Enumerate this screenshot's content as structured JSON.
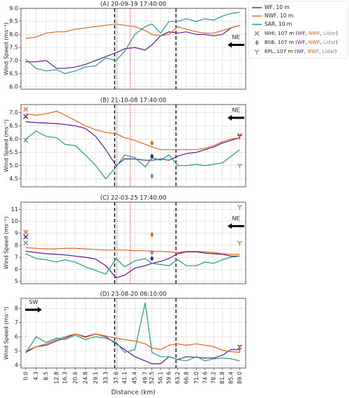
{
  "chart_data": [
    {
      "type": "line",
      "title": "(A) 20-09-19 17:40:00",
      "ylabel": "Wind Speed (ms⁻¹)",
      "grid": true,
      "x": [
        0.0,
        4.3,
        8.5,
        12.8,
        16.3,
        20.6,
        24.8,
        29.1,
        33.3,
        37.6,
        41.1,
        45.4,
        49.7,
        52.5,
        56.1,
        59.6,
        63.2,
        66.8,
        71.0,
        74.6,
        78.2,
        81.8,
        85.4,
        89.0
      ],
      "xlim": [
        -2,
        91.5
      ],
      "xticks": [
        0,
        4.3,
        8.5,
        12.8,
        16.3,
        20.6,
        24.8,
        29.1,
        33.3,
        37.6,
        41.1,
        45.4,
        49.7,
        52.5,
        56.1,
        59.6,
        63.2,
        66.8,
        71,
        74.6,
        78.2,
        81.8,
        85.4,
        89
      ],
      "ylim": [
        5.9,
        9.0
      ],
      "yticks": [
        {
          "value": 6,
          "label": "6.0"
        },
        6.5,
        {
          "value": 7,
          "label": "7.0"
        },
        7.5,
        {
          "value": 8,
          "label": "8.0"
        },
        8.5,
        {
          "value": 9,
          "label": "9.0"
        }
      ],
      "series": [
        {
          "name": "WF, 10 m",
          "color": "#5b1a8c",
          "values": [
            6.95,
            6.95,
            7.0,
            6.7,
            6.7,
            6.75,
            6.85,
            7.0,
            7.15,
            7.3,
            7.45,
            7.5,
            7.4,
            7.6,
            7.95,
            8.1,
            8.05,
            8.1,
            8.0,
            8.0,
            7.95,
            8.0,
            8.25,
            8.35
          ]
        },
        {
          "name": "NWF, 10 m",
          "color": "#e0661a",
          "values": [
            7.85,
            7.9,
            8.05,
            8.1,
            8.1,
            8.2,
            8.25,
            8.3,
            8.35,
            8.4,
            8.35,
            8.3,
            8.15,
            8.0,
            7.95,
            8.0,
            8.3,
            8.2,
            8.1,
            8.05,
            8.05,
            8.15,
            8.25,
            8.35
          ]
        },
        {
          "name": "SAR, 10 m",
          "color": "#1f9e78",
          "values": [
            7.05,
            6.7,
            6.6,
            6.65,
            6.5,
            6.6,
            6.75,
            6.8,
            7.1,
            7.0,
            7.35,
            8.0,
            8.3,
            8.4,
            8.05,
            8.5,
            8.5,
            8.6,
            8.5,
            8.6,
            8.55,
            8.7,
            8.8,
            8.85
          ]
        }
      ],
      "vlines": [
        {
          "x": 37.0,
          "style": "dashed",
          "color": "#000000"
        },
        {
          "x": 38.0,
          "style": "dotted",
          "color": "#e00000"
        },
        {
          "x": 43.5,
          "style": "dotted",
          "color": "#e00000"
        },
        {
          "x": 62.5,
          "style": "dashed",
          "color": "#000000"
        }
      ],
      "points": [],
      "wind": {
        "label": "NE",
        "direction": "left",
        "y": 7.6
      }
    },
    {
      "type": "line",
      "title": "(B) 21-10-08 17:40:00",
      "ylabel": "Wind Speed (ms⁻¹)",
      "grid": true,
      "x": [
        0.0,
        4.3,
        8.5,
        12.8,
        16.3,
        20.6,
        24.8,
        29.1,
        33.3,
        37.6,
        41.1,
        45.4,
        49.7,
        52.5,
        56.1,
        59.6,
        63.2,
        66.8,
        71.0,
        74.6,
        78.2,
        81.8,
        85.4,
        89.0
      ],
      "xlim": [
        -2,
        91.5
      ],
      "xticks": [
        0,
        4.3,
        8.5,
        12.8,
        16.3,
        20.6,
        24.8,
        29.1,
        33.3,
        37.6,
        41.1,
        45.4,
        49.7,
        52.5,
        56.1,
        59.6,
        63.2,
        66.8,
        71,
        74.6,
        78.2,
        81.8,
        85.4,
        89
      ],
      "ylim": [
        4.2,
        7.3
      ],
      "yticks": [
        4.5,
        {
          "value": 5,
          "label": "5.0"
        },
        5.5,
        {
          "value": 6,
          "label": "6.0"
        },
        6.5,
        {
          "value": 7,
          "label": "7.0"
        }
      ],
      "series": [
        {
          "name": "WF, 10 m",
          "color": "#5b1a8c",
          "values": [
            6.65,
            6.62,
            6.6,
            6.58,
            6.55,
            6.5,
            6.4,
            6.1,
            5.6,
            5.0,
            5.25,
            5.25,
            5.2,
            5.2,
            5.25,
            5.2,
            5.35,
            5.45,
            5.5,
            5.6,
            5.7,
            5.85,
            5.95,
            6.05
          ]
        },
        {
          "name": "NWF, 10 m",
          "color": "#e0661a",
          "values": [
            6.95,
            6.9,
            6.95,
            7.05,
            6.9,
            6.7,
            6.5,
            6.35,
            6.25,
            6.2,
            6.05,
            5.95,
            5.8,
            5.7,
            5.6,
            5.6,
            5.6,
            5.6,
            5.6,
            5.65,
            5.75,
            5.9,
            6.0,
            6.05
          ]
        },
        {
          "name": "SAR, 10 m",
          "color": "#1f9e78",
          "values": [
            6.0,
            6.3,
            6.1,
            6.05,
            5.8,
            5.75,
            5.4,
            5.0,
            4.5,
            4.95,
            5.4,
            5.3,
            4.95,
            5.3,
            5.2,
            5.4,
            5.0,
            5.0,
            5.05,
            5.0,
            5.05,
            5.1,
            5.35,
            5.6
          ]
        }
      ],
      "vlines": [
        {
          "x": 37.0,
          "style": "dashed",
          "color": "#000000"
        },
        {
          "x": 38.0,
          "style": "dotted",
          "color": "#e00000"
        },
        {
          "x": 43.5,
          "style": "dotted",
          "color": "#e00000"
        },
        {
          "x": 62.5,
          "style": "dashed",
          "color": "#000000"
        }
      ],
      "points": [
        {
          "site": 0,
          "x": 0.0,
          "values": [
            6.85,
            7.12,
            5.95
          ]
        },
        {
          "site": 1,
          "x": 52.5,
          "values": [
            5.35,
            5.85,
            4.6
          ]
        },
        {
          "site": 2,
          "x": 89.0,
          "values": [
            6.1,
            6.15,
            5.0
          ]
        }
      ],
      "wind": {
        "label": "NE",
        "direction": "left",
        "y": 6.8
      }
    },
    {
      "type": "line",
      "title": "(C) 22-03-25 17:40:00",
      "ylabel": "Wind Speed (ms⁻¹)",
      "grid": true,
      "x": [
        0.0,
        4.3,
        8.5,
        12.8,
        16.3,
        20.6,
        24.8,
        29.1,
        33.3,
        37.6,
        41.1,
        45.4,
        49.7,
        52.5,
        56.1,
        59.6,
        63.2,
        66.8,
        71.0,
        74.6,
        78.2,
        81.8,
        85.4,
        89.0
      ],
      "xlim": [
        -2,
        91.5
      ],
      "xticks": [
        0,
        4.3,
        8.5,
        12.8,
        16.3,
        20.6,
        24.8,
        29.1,
        33.3,
        37.6,
        41.1,
        45.4,
        49.7,
        52.5,
        56.1,
        59.6,
        63.2,
        66.8,
        71,
        74.6,
        78.2,
        81.8,
        85.4,
        89
      ],
      "ylim": [
        4.8,
        11.6
      ],
      "yticks": [
        5,
        6,
        7,
        8,
        9,
        10,
        11
      ],
      "series": [
        {
          "name": "WF, 10 m",
          "color": "#5b1a8c",
          "values": [
            7.5,
            7.4,
            7.3,
            7.25,
            7.2,
            7.1,
            7.0,
            6.85,
            6.3,
            5.3,
            5.5,
            6.1,
            6.3,
            6.5,
            6.65,
            6.9,
            7.3,
            7.45,
            7.45,
            7.35,
            7.3,
            7.25,
            7.1,
            7.1
          ]
        },
        {
          "name": "NWF, 10 m",
          "color": "#e0661a",
          "values": [
            7.8,
            7.75,
            7.7,
            7.7,
            7.75,
            7.75,
            7.7,
            7.65,
            7.6,
            7.6,
            7.6,
            7.55,
            7.55,
            7.5,
            7.5,
            7.45,
            7.4,
            7.5,
            7.5,
            7.45,
            7.4,
            7.3,
            7.25,
            7.25
          ]
        },
        {
          "name": "SAR, 10 m",
          "color": "#1f9e78",
          "values": [
            7.3,
            6.9,
            6.8,
            6.6,
            6.8,
            6.6,
            6.2,
            5.9,
            5.6,
            6.9,
            6.2,
            6.7,
            6.9,
            6.5,
            6.4,
            6.3,
            6.8,
            6.3,
            6.3,
            6.6,
            6.5,
            6.8,
            7.0,
            7.1
          ]
        }
      ],
      "vlines": [
        {
          "x": 37.0,
          "style": "dashed",
          "color": "#000000"
        },
        {
          "x": 38.0,
          "style": "dotted",
          "color": "#e00000"
        },
        {
          "x": 43.5,
          "style": "dotted",
          "color": "#e00000"
        },
        {
          "x": 62.5,
          "style": "dashed",
          "color": "#000000"
        }
      ],
      "points": [
        {
          "site": 0,
          "x": 0.0,
          "values": [
            8.7,
            9.1,
            8.2
          ]
        },
        {
          "site": 1,
          "x": 52.5,
          "values": [
            6.9,
            8.9,
            7.4
          ]
        },
        {
          "site": 2,
          "x": 89.0,
          "values": [
            null,
            8.2,
            11.2
          ]
        }
      ],
      "wind": {
        "label": "NE",
        "direction": "left",
        "y": 9.6
      }
    },
    {
      "type": "line",
      "title": "(D) 23-08-20 06:10:00",
      "ylabel": "Wind Speed (ms⁻¹)",
      "xlabel": "Distance (km)",
      "grid": true,
      "x": [
        0.0,
        4.3,
        8.5,
        12.8,
        16.3,
        20.6,
        24.8,
        29.1,
        33.3,
        37.6,
        41.1,
        45.4,
        49.7,
        52.5,
        56.1,
        59.6,
        63.2,
        66.8,
        71.0,
        74.6,
        78.2,
        81.8,
        85.4,
        89.0
      ],
      "xlim": [
        -2,
        91.5
      ],
      "xticks": [
        {
          "value": 0,
          "label": "0.0"
        },
        4.3,
        8.5,
        12.8,
        16.3,
        20.6,
        24.8,
        29.1,
        33.3,
        37.6,
        41.1,
        45.4,
        49.7,
        52.5,
        56.1,
        59.6,
        63.2,
        66.8,
        {
          "value": 71,
          "label": "71.0"
        },
        74.6,
        78.2,
        81.8,
        85.4,
        {
          "value": 89,
          "label": "89.0"
        }
      ],
      "ylim": [
        3.8,
        8.7
      ],
      "yticks": [
        4,
        5,
        6,
        7,
        8
      ],
      "series": [
        {
          "name": "WF, 10 m",
          "color": "#5b1a8c",
          "values": [
            4.9,
            5.3,
            5.4,
            5.7,
            5.9,
            6.2,
            6.0,
            6.2,
            6.0,
            5.5,
            5.1,
            4.6,
            4.3,
            4.1,
            4.1,
            4.6,
            4.4,
            4.6,
            4.55,
            4.5,
            4.5,
            4.7,
            5.1,
            5.1
          ]
        },
        {
          "name": "NWF, 10 m",
          "color": "#e0661a",
          "values": [
            5.0,
            5.3,
            5.5,
            5.8,
            6.0,
            6.2,
            5.95,
            6.2,
            6.05,
            5.9,
            5.8,
            5.7,
            5.5,
            5.2,
            5.1,
            5.4,
            5.5,
            5.4,
            5.5,
            5.4,
            5.3,
            5.05,
            4.95,
            4.9
          ]
        },
        {
          "name": "SAR, 10 m",
          "color": "#1f9e78",
          "values": [
            4.85,
            6.0,
            5.6,
            5.9,
            5.8,
            6.1,
            5.8,
            6.0,
            5.9,
            5.6,
            4.9,
            5.1,
            8.4,
            4.9,
            4.6,
            4.6,
            4.4,
            4.3,
            4.6,
            4.3,
            4.45,
            4.5,
            4.45,
            4.3
          ]
        }
      ],
      "vlines": [
        {
          "x": 37.0,
          "style": "dashed",
          "color": "#000000"
        },
        {
          "x": 38.0,
          "style": "dotted",
          "color": "#e00000"
        },
        {
          "x": 62.5,
          "style": "dashed",
          "color": "#000000"
        }
      ],
      "points": [
        {
          "site": 2,
          "x": 89.0,
          "values": [
            5.3,
            5.1,
            null
          ]
        }
      ],
      "wind": {
        "label": "SW",
        "direction": "right",
        "y": 7.9
      }
    }
  ],
  "legend": {
    "sources": [
      {
        "name": "WF",
        "color": "#5b1a8c"
      },
      {
        "name": "NWF",
        "color": "#e0661a"
      },
      {
        "name": "Lidar",
        "color": "#888888"
      }
    ],
    "sites": [
      {
        "symbol": "x",
        "label_parts": [
          "WHi, 107 m (",
          "WF",
          ", ",
          "NWF",
          ", ",
          "Lidar",
          ")"
        ]
      },
      {
        "symbol": "diamond",
        "label_parts": [
          "BSB, 107 m (",
          "WF",
          ", ",
          "NWF",
          ", ",
          "Lidar",
          ")"
        ]
      },
      {
        "symbol": "tri_down",
        "label_parts": [
          "EPL, 107 m (",
          "WF",
          ", ",
          "NWF",
          ", ",
          "Lidar",
          ")"
        ]
      }
    ]
  }
}
